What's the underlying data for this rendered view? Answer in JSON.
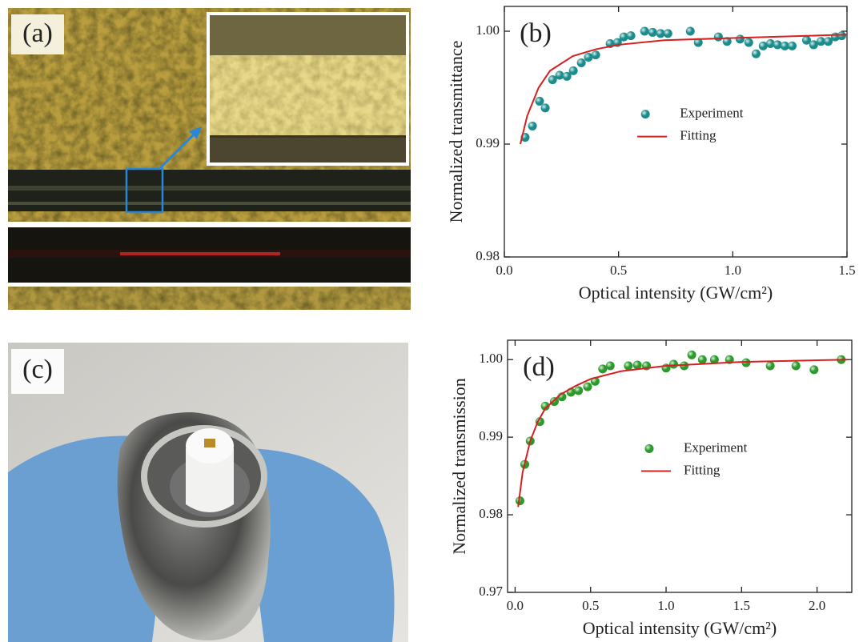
{
  "photo_labels": [
    "(a)",
    "(c)"
  ],
  "chart_data": [
    {
      "type": "scatter",
      "panel_label": "(b)",
      "x_label": "Optical intensity (GW/cm²)",
      "y_label": "Normalized transmittance",
      "xlim": [
        0,
        1.5
      ],
      "ylim": [
        0.98,
        1.0022
      ],
      "xticks": [
        {
          "value": 0,
          "label": "0.0"
        },
        0.5,
        {
          "value": 1,
          "label": "1.0"
        },
        1.5
      ],
      "yticks": [
        0.98,
        0.99,
        {
          "value": 1,
          "label": "1.00"
        }
      ],
      "legend": "center",
      "series": [
        {
          "name": "Experiment",
          "mark": "marker",
          "color": "#1b8c8c",
          "x": [
            0.091,
            0.123,
            0.154,
            0.179,
            0.211,
            0.242,
            0.274,
            0.302,
            0.337,
            0.368,
            0.4,
            0.463,
            0.495,
            0.523,
            0.554,
            0.614,
            0.649,
            0.684,
            0.716,
            0.814,
            0.849,
            0.937,
            0.975,
            1.032,
            1.07,
            1.102,
            1.133,
            1.165,
            1.196,
            1.228,
            1.26,
            1.323,
            1.354,
            1.386,
            1.418,
            1.449,
            1.477
          ],
          "values": [
            0.9906,
            0.9916,
            0.9938,
            0.9932,
            0.9957,
            0.9961,
            0.996,
            0.9965,
            0.9972,
            0.9977,
            0.9979,
            0.9989,
            0.999,
            0.9995,
            0.9996,
            1.0,
            0.9999,
            0.9998,
            0.9998,
            1.0,
            0.999,
            0.9995,
            0.9991,
            0.9993,
            0.999,
            0.998,
            0.9987,
            0.9989,
            0.9988,
            0.9987,
            0.9987,
            0.9992,
            0.9988,
            0.9991,
            0.9991,
            0.9995,
            0.9996
          ]
        },
        {
          "name": "Fitting",
          "mark": "line",
          "color": "#d62020",
          "x": [
            0.07,
            0.1,
            0.15,
            0.2,
            0.3,
            0.4,
            0.5,
            0.7,
            1.0,
            1.5
          ],
          "values": [
            0.99,
            0.9925,
            0.995,
            0.9965,
            0.9978,
            0.9984,
            0.9988,
            0.9992,
            0.9994,
            0.9997
          ]
        }
      ]
    },
    {
      "type": "scatter",
      "panel_label": "(d)",
      "x_label": "Optical intensity (GW/cm²)",
      "y_label": "Normalized transmission",
      "xlim": [
        -0.05,
        2.23
      ],
      "ylim": [
        0.97,
        1.0025
      ],
      "xticks": [
        {
          "value": 0,
          "label": "0.0"
        },
        0.5,
        {
          "value": 1,
          "label": "1.0"
        },
        1.5,
        {
          "value": 2,
          "label": "2.0"
        }
      ],
      "yticks": [
        0.97,
        0.98,
        0.99,
        {
          "value": 1,
          "label": "1.00"
        }
      ],
      "legend": "center",
      "series": [
        {
          "name": "Experiment",
          "mark": "marker",
          "color": "#2a9a2a",
          "x": [
            0.032,
            0.064,
            0.1,
            0.164,
            0.2,
            0.26,
            0.31,
            0.37,
            0.42,
            0.48,
            0.53,
            0.58,
            0.63,
            0.75,
            0.81,
            0.87,
            1.0,
            1.05,
            1.12,
            1.17,
            1.24,
            1.32,
            1.42,
            1.53,
            1.69,
            1.86,
            1.98,
            2.16
          ],
          "values": [
            0.9818,
            0.9865,
            0.9895,
            0.992,
            0.994,
            0.9946,
            0.9952,
            0.9958,
            0.996,
            0.9965,
            0.9972,
            0.9988,
            0.9992,
            0.9992,
            0.9993,
            0.9992,
            0.9989,
            0.9994,
            0.9992,
            1.0006,
            1.0,
            1.0,
            1.0,
            0.9996,
            0.9992,
            0.9992,
            0.9987,
            1.0
          ]
        },
        {
          "name": "Fitting",
          "mark": "line",
          "color": "#d62020",
          "x": [
            0.02,
            0.05,
            0.1,
            0.15,
            0.2,
            0.3,
            0.4,
            0.5,
            0.7,
            1.0,
            1.5,
            2.2
          ],
          "values": [
            0.981,
            0.9855,
            0.9895,
            0.992,
            0.9937,
            0.9955,
            0.9966,
            0.9975,
            0.9985,
            0.9992,
            0.9997,
            1.0
          ]
        }
      ]
    }
  ]
}
